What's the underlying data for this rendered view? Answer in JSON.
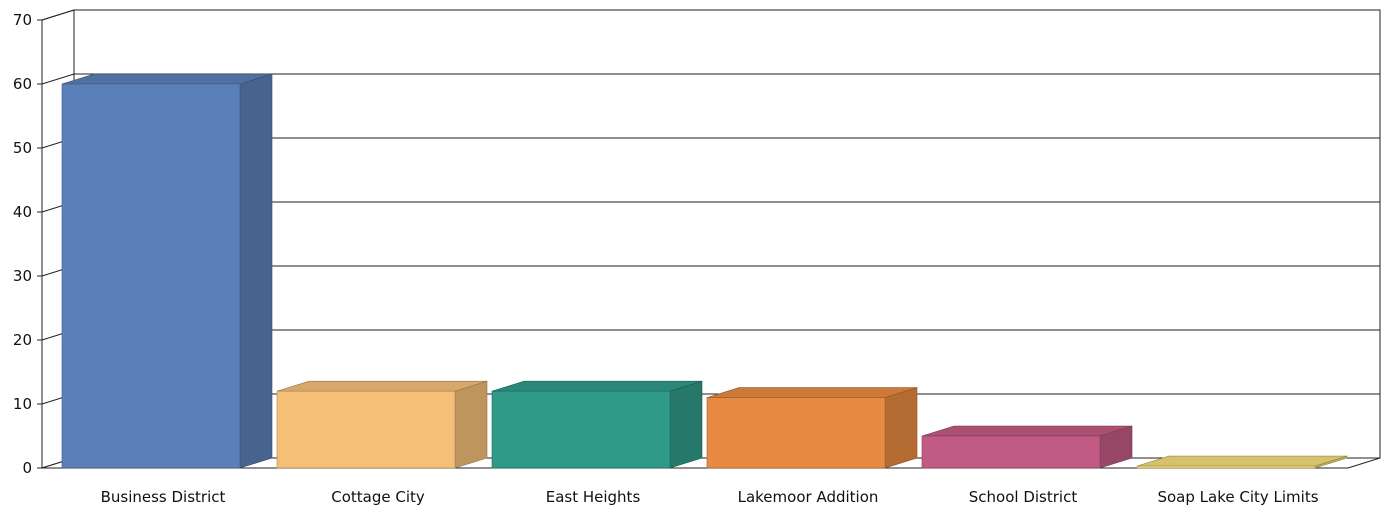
{
  "chart_data": {
    "type": "bar",
    "title": "",
    "xlabel": "",
    "ylabel": "",
    "categories": [
      "Business District",
      "Cottage City",
      "East Heights",
      "Lakemoor Addition",
      "School District",
      "Soap Lake City Limits"
    ],
    "values": [
      60,
      12,
      12,
      11,
      5,
      0.3
    ],
    "ylim": [
      0,
      70
    ],
    "yticks": [
      "0",
      "10",
      "20",
      "30",
      "40",
      "50",
      "60",
      "70"
    ],
    "bar_colors": [
      "#5b7fb8",
      "#f5bf78",
      "#2f9a88",
      "#e88a42",
      "#c25b83",
      "#f3dc7a"
    ],
    "grid": true,
    "legend": "none",
    "style": "3d"
  }
}
